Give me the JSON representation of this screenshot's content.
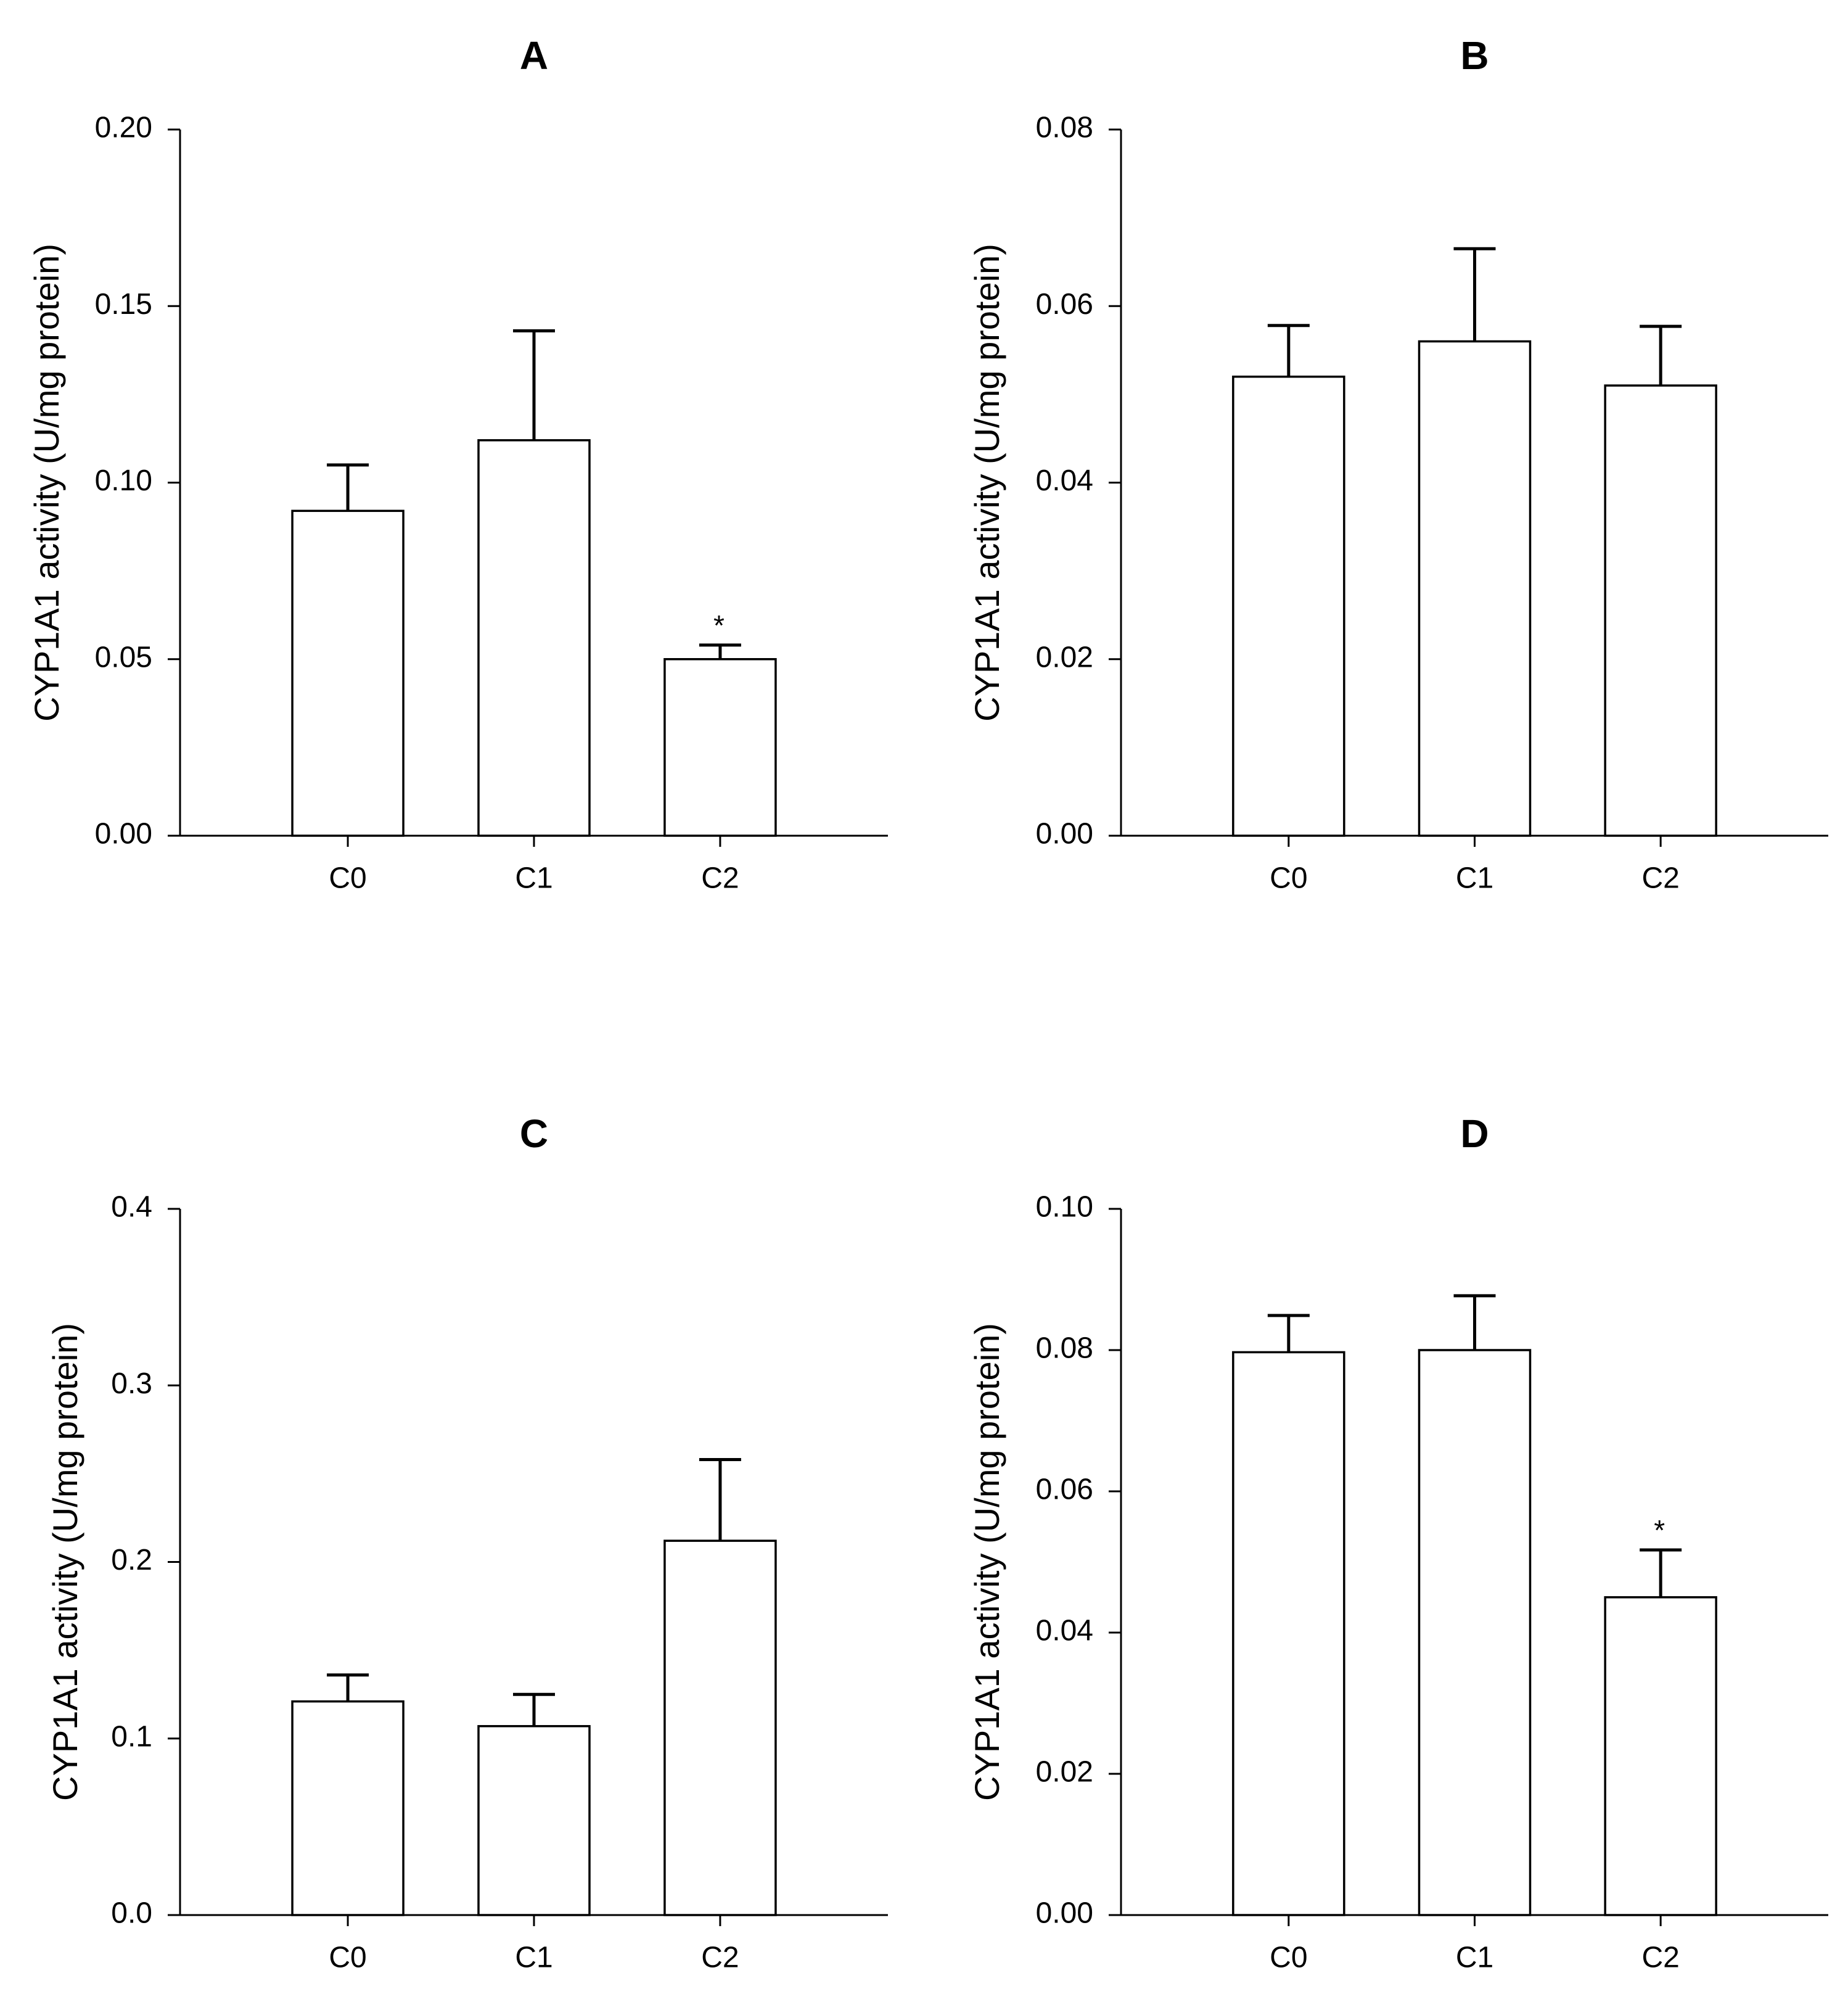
{
  "chart_data": [
    {
      "type": "bar",
      "title": "A",
      "xlabel": "",
      "ylabel": "CYP1A1 activity (U/mg protein)",
      "categories": [
        "C0",
        "C1",
        "C2"
      ],
      "values": [
        0.092,
        0.112,
        0.05
      ],
      "errors": [
        0.013,
        0.031,
        0.004
      ],
      "significance": [
        "",
        "",
        "*"
      ],
      "ylim": [
        0,
        0.2
      ],
      "yticks": [
        "0.00",
        "0.05",
        "0.10",
        "0.15",
        "0.20"
      ],
      "ytick_values": [
        0,
        0.05,
        0.1,
        0.15,
        0.2
      ]
    },
    {
      "type": "bar",
      "title": "B",
      "xlabel": "",
      "ylabel": "CYP1A1 activity (U/mg protein)",
      "categories": [
        "C0",
        "C1",
        "C2"
      ],
      "values": [
        0.052,
        0.056,
        0.051
      ],
      "errors": [
        0.0058,
        0.0105,
        0.0067
      ],
      "significance": [
        "",
        "",
        ""
      ],
      "ylim": [
        0,
        0.08
      ],
      "yticks": [
        "0.00",
        "0.02",
        "0.04",
        "0.06",
        "0.08"
      ],
      "ytick_values": [
        0,
        0.02,
        0.04,
        0.06,
        0.08
      ]
    },
    {
      "type": "bar",
      "title": "C",
      "xlabel": "",
      "ylabel": "CYP1A1 activity (U/mg protein)",
      "categories": [
        "C0",
        "C1",
        "C2"
      ],
      "values": [
        0.121,
        0.107,
        0.212
      ],
      "errors": [
        0.015,
        0.018,
        0.046
      ],
      "significance": [
        "",
        "",
        ""
      ],
      "ylim": [
        0,
        0.4
      ],
      "yticks": [
        "0.0",
        "0.1",
        "0.2",
        "0.3",
        "0.4"
      ],
      "ytick_values": [
        0,
        0.1,
        0.2,
        0.3,
        0.4
      ]
    },
    {
      "type": "bar",
      "title": "D",
      "xlabel": "",
      "ylabel": "CYP1A1 activity (U/mg protein)",
      "categories": [
        "C0",
        "C1",
        "C2"
      ],
      "values": [
        0.0797,
        0.08,
        0.045
      ],
      "errors": [
        0.0052,
        0.0077,
        0.0067
      ],
      "significance": [
        "",
        "",
        "*"
      ],
      "ylim": [
        0,
        0.1
      ],
      "yticks": [
        "0.00",
        "0.02",
        "0.04",
        "0.06",
        "0.08",
        "0.10"
      ],
      "ytick_values": [
        0,
        0.02,
        0.04,
        0.06,
        0.08,
        0.1
      ]
    }
  ]
}
